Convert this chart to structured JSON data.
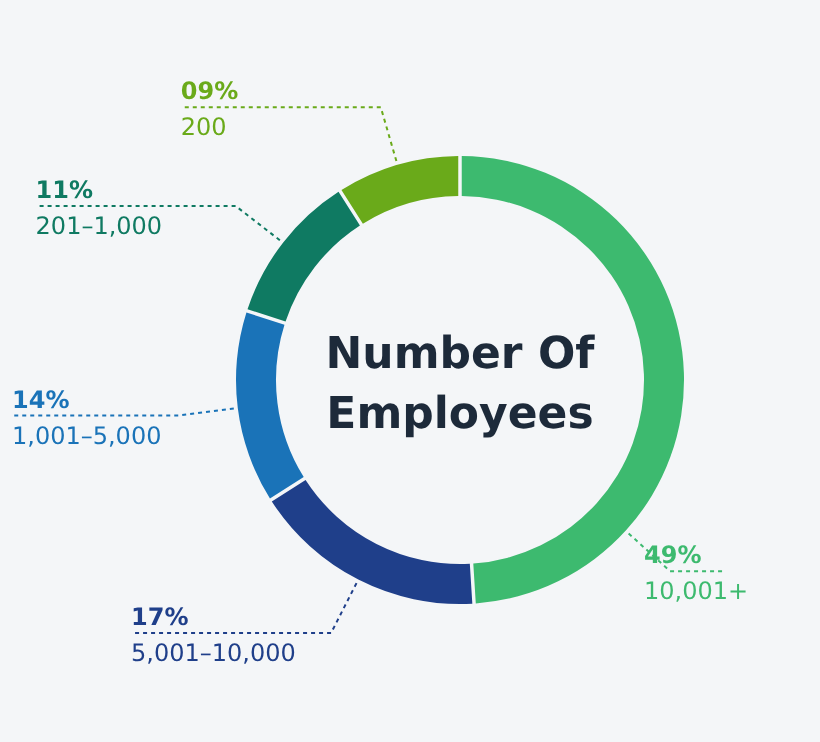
{
  "chart_data": {
    "type": "donut",
    "title": "Number Of Employees",
    "categories": [
      "10,001+",
      "5,001–10,000",
      "1,001–5,000",
      "201–1,000",
      "200"
    ],
    "values": [
      49,
      17,
      14,
      11,
      9
    ],
    "value_labels": [
      "49%",
      "17%",
      "14%",
      "11%",
      "09%"
    ],
    "colors": [
      "#3dba6f",
      "#1f3f8a",
      "#1a73b8",
      "#0f7a62",
      "#6aaa1a"
    ]
  }
}
